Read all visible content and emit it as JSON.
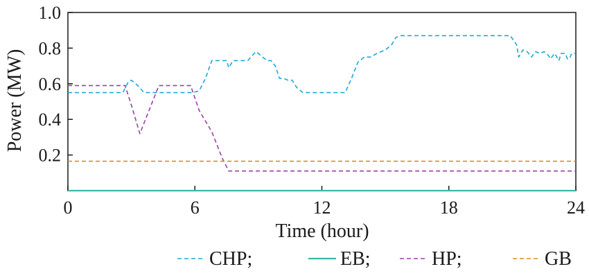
{
  "chart_data": {
    "type": "line",
    "title": "",
    "xlabel": "Time (hour)",
    "ylabel": "Power (MW)",
    "xlim": [
      0,
      24
    ],
    "ylim": [
      0,
      1.0
    ],
    "xticks": [
      0,
      6,
      12,
      18,
      24
    ],
    "xtick_labels": [
      "0",
      "6",
      "12",
      "18",
      "24"
    ],
    "yticks": [
      0.2,
      0.4,
      0.6,
      0.8,
      1.0
    ],
    "ytick_labels": [
      "0.2",
      "0.4",
      "0.6",
      "0.8",
      "1.0"
    ],
    "grid": false,
    "legend_position": "bottom",
    "legend": [
      {
        "label": "CHP;",
        "series": "CHP"
      },
      {
        "label": "EB;",
        "series": "EB"
      },
      {
        "label": "HP;",
        "series": "HP"
      },
      {
        "label": "GB",
        "series": "GB"
      }
    ],
    "series": [
      {
        "name": "CHP",
        "color": "#1ea7d6",
        "dashed": true,
        "points": [
          [
            0,
            0.55
          ],
          [
            2.6,
            0.55
          ],
          [
            2.85,
            0.61
          ],
          [
            3.0,
            0.62
          ],
          [
            3.3,
            0.59
          ],
          [
            3.6,
            0.55
          ],
          [
            5.9,
            0.55
          ],
          [
            6.2,
            0.56
          ],
          [
            6.5,
            0.63
          ],
          [
            6.8,
            0.73
          ],
          [
            7.5,
            0.73
          ],
          [
            7.6,
            0.69
          ],
          [
            7.8,
            0.73
          ],
          [
            8.2,
            0.73
          ],
          [
            8.5,
            0.73
          ],
          [
            8.8,
            0.77
          ],
          [
            8.9,
            0.78
          ],
          [
            9.1,
            0.76
          ],
          [
            9.4,
            0.73
          ],
          [
            9.6,
            0.73
          ],
          [
            9.8,
            0.7
          ],
          [
            10.0,
            0.63
          ],
          [
            10.2,
            0.63
          ],
          [
            10.4,
            0.62
          ],
          [
            10.6,
            0.62
          ],
          [
            10.8,
            0.58
          ],
          [
            11.1,
            0.55
          ],
          [
            11.5,
            0.55
          ],
          [
            13.1,
            0.55
          ],
          [
            13.4,
            0.63
          ],
          [
            13.7,
            0.72
          ],
          [
            14.0,
            0.75
          ],
          [
            14.3,
            0.75
          ],
          [
            14.6,
            0.77
          ],
          [
            15.0,
            0.79
          ],
          [
            15.3,
            0.82
          ],
          [
            15.5,
            0.86
          ],
          [
            15.7,
            0.87
          ],
          [
            20.9,
            0.87
          ],
          [
            21.2,
            0.82
          ],
          [
            21.3,
            0.75
          ],
          [
            21.5,
            0.79
          ],
          [
            21.7,
            0.78
          ],
          [
            21.9,
            0.75
          ],
          [
            22.1,
            0.78
          ],
          [
            22.3,
            0.77
          ],
          [
            22.5,
            0.78
          ],
          [
            22.7,
            0.76
          ],
          [
            22.8,
            0.74
          ],
          [
            23.0,
            0.77
          ],
          [
            23.2,
            0.73
          ],
          [
            23.3,
            0.77
          ],
          [
            23.5,
            0.77
          ],
          [
            23.6,
            0.74
          ],
          [
            23.7,
            0.74
          ],
          [
            23.8,
            0.77
          ],
          [
            24.0,
            0.77
          ]
        ]
      },
      {
        "name": "EB",
        "color": "#3ab8a6",
        "dashed": false,
        "points": [
          [
            0,
            0.0
          ],
          [
            24,
            0.0
          ]
        ]
      },
      {
        "name": "HP",
        "color": "#9b3fa6",
        "dashed": true,
        "points": [
          [
            0,
            0.59
          ],
          [
            2.7,
            0.59
          ],
          [
            3.0,
            0.48
          ],
          [
            3.4,
            0.32
          ],
          [
            3.7,
            0.41
          ],
          [
            4.1,
            0.53
          ],
          [
            4.3,
            0.59
          ],
          [
            5.8,
            0.59
          ],
          [
            6.2,
            0.45
          ],
          [
            6.8,
            0.33
          ],
          [
            7.3,
            0.18
          ],
          [
            7.6,
            0.11
          ],
          [
            24,
            0.11
          ]
        ]
      },
      {
        "name": "GB",
        "color": "#e08a1e",
        "dashed": true,
        "points": [
          [
            0,
            0.165
          ],
          [
            24,
            0.165
          ]
        ]
      }
    ]
  }
}
